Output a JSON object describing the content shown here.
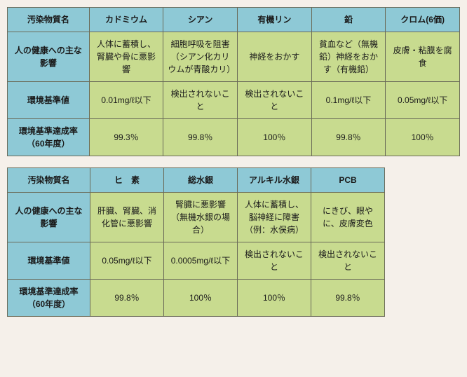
{
  "colors": {
    "header_bg": "#8ec9d6",
    "data_bg": "#c8db8f",
    "border": "#6a6a58",
    "page_bg": "#f5f0ea",
    "text": "#1a1a1a"
  },
  "table1": {
    "row_headers": [
      "汚染物質名",
      "人の健康への主な影響",
      "環境基準値",
      "環境基準達成率（60年度）"
    ],
    "col_headers": [
      "カドミウム",
      "シアン",
      "有機リン",
      "鉛",
      "クロム(6価)"
    ],
    "rows": [
      [
        "人体に蓄積し、腎臓や骨に悪影響",
        "細胞呼吸を阻害（シアン化カリウムが青酸カリ）",
        "神経をおかす",
        "貧血など（無機鉛）神経をおかす（有機鉛）",
        "皮膚・粘膜を腐食"
      ],
      [
        "0.01mg/ℓ以下",
        "検出されないこと",
        "検出されないこと",
        "0.1mg/ℓ以下",
        "0.05mg/ℓ以下"
      ],
      [
        "99.3％",
        "99.8％",
        "100％",
        "99.8％",
        "100％"
      ]
    ]
  },
  "table2": {
    "row_headers": [
      "汚染物質名",
      "人の健康への主な影響",
      "環境基準値",
      "環境基準達成率（60年度）"
    ],
    "col_headers": [
      "ヒ　素",
      "総水銀",
      "アルキル水銀",
      "PCB"
    ],
    "rows": [
      [
        "肝臓、腎臓、消化管に悪影響",
        "腎臓に悪影響（無機水銀の場合）",
        "人体に蓄積し、脳神経に障害（例：水俣病）",
        "にきび、眼やに、皮膚変色"
      ],
      [
        "0.05mg/ℓ以下",
        "0.0005mg/ℓ以下",
        "検出されないこと",
        "検出されないこと"
      ],
      [
        "99.8％",
        "100％",
        "100％",
        "99.8％"
      ]
    ]
  }
}
